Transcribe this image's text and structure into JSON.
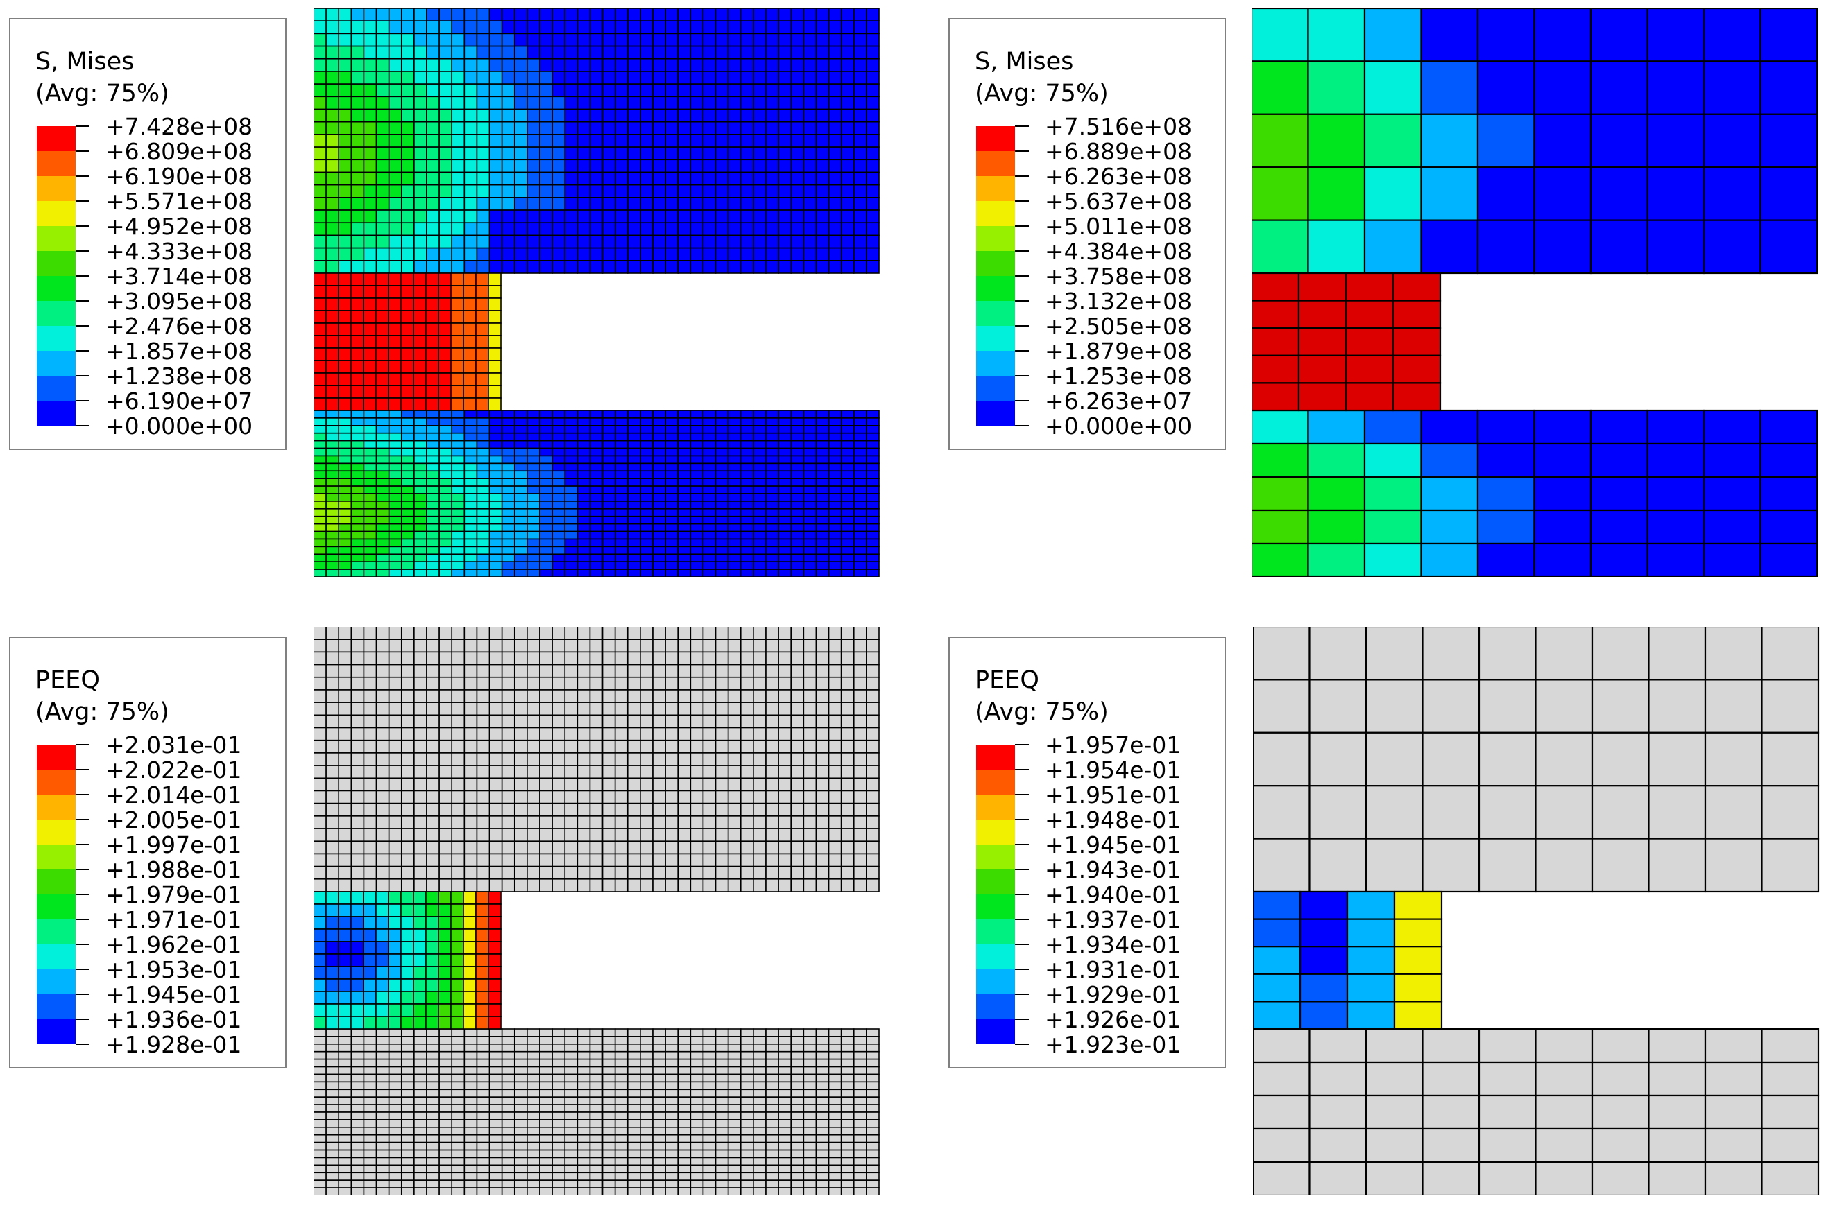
{
  "panels": [
    {
      "legend": {
        "title": "S, Mises",
        "subtitle": "(Avg: 75%)",
        "values": [
          "+7.428e+08",
          "+6.809e+08",
          "+6.190e+08",
          "+5.571e+08",
          "+4.952e+08",
          "+4.333e+08",
          "+3.714e+08",
          "+3.095e+08",
          "+2.476e+08",
          "+1.857e+08",
          "+1.238e+08",
          "+6.190e+07",
          "+0.000e+00"
        ]
      },
      "mesh": "fine",
      "field": "stress"
    },
    {
      "legend": {
        "title": "S, Mises",
        "subtitle": "(Avg: 75%)",
        "values": [
          "+7.516e+08",
          "+6.889e+08",
          "+6.263e+08",
          "+5.637e+08",
          "+5.011e+08",
          "+4.384e+08",
          "+3.758e+08",
          "+3.132e+08",
          "+2.505e+08",
          "+1.879e+08",
          "+1.253e+08",
          "+6.263e+07",
          "+0.000e+00"
        ]
      },
      "mesh": "coarse",
      "field": "stress"
    },
    {
      "legend": {
        "title": "PEEQ",
        "subtitle": "(Avg: 75%)",
        "values": [
          "+2.031e-01",
          "+2.022e-01",
          "+2.014e-01",
          "+2.005e-01",
          "+1.997e-01",
          "+1.988e-01",
          "+1.979e-01",
          "+1.971e-01",
          "+1.962e-01",
          "+1.953e-01",
          "+1.945e-01",
          "+1.936e-01",
          "+1.928e-01"
        ]
      },
      "mesh": "fine",
      "field": "peeq"
    },
    {
      "legend": {
        "title": "PEEQ",
        "subtitle": "(Avg: 75%)",
        "values": [
          "+1.957e-01",
          "+1.954e-01",
          "+1.951e-01",
          "+1.948e-01",
          "+1.945e-01",
          "+1.943e-01",
          "+1.940e-01",
          "+1.937e-01",
          "+1.934e-01",
          "+1.931e-01",
          "+1.929e-01",
          "+1.926e-01",
          "+1.923e-01"
        ]
      },
      "mesh": "coarse",
      "field": "peeq"
    }
  ],
  "colormap": [
    "#ff0000",
    "#ff5a00",
    "#ffb400",
    "#f0f000",
    "#96f000",
    "#3cdc00",
    "#00e61e",
    "#00f082",
    "#00f0dc",
    "#00b4ff",
    "#005aff",
    "#0000ff"
  ],
  "element_colors": {
    "grey": "#d7d7d7",
    "mesh_line": "#000000",
    "red_block": "#dc0000"
  }
}
